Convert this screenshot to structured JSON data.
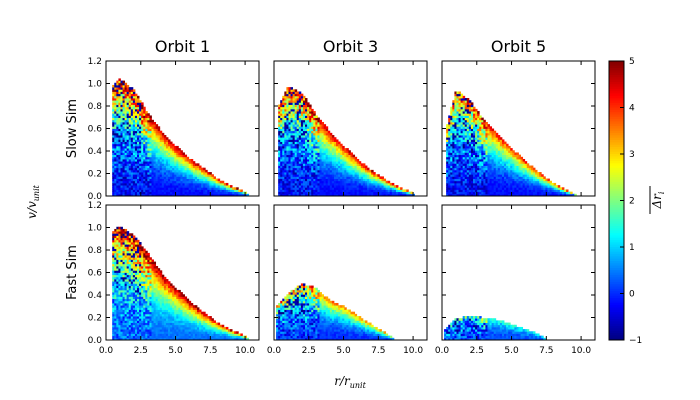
{
  "chart_data": {
    "type": "heatmap",
    "columns": [
      "Orbit 1",
      "Orbit 3",
      "Orbit 5"
    ],
    "rows": [
      "Slow Sim",
      "Fast Sim"
    ],
    "xlabel": "r/r_unit",
    "ylabel": "v/v_unit",
    "colorbar_label": "Δr_i",
    "xlim": [
      0.0,
      11.0
    ],
    "ylim": [
      0.0,
      1.2
    ],
    "xticks": [
      "0.0",
      "2.5",
      "5.0",
      "7.5",
      "10.0"
    ],
    "yticks": [
      "0.0",
      "0.2",
      "0.4",
      "0.6",
      "0.8",
      "1.0",
      "1.2"
    ],
    "colorbar": {
      "min": -1,
      "max": 5,
      "ticks": [
        "−1",
        "0",
        "1",
        "2",
        "3",
        "4",
        "5"
      ],
      "colormap": "jet"
    },
    "panels": [
      {
        "row": "Slow Sim",
        "column": "Orbit 1",
        "envelope_x": [
          0.4,
          1.0,
          2.0,
          3.0,
          4.0,
          5.0,
          6.0,
          7.0,
          8.0,
          9.0,
          10.0,
          10.4
        ],
        "envelope_vmax": [
          0.98,
          1.04,
          0.95,
          0.74,
          0.58,
          0.45,
          0.34,
          0.25,
          0.16,
          0.09,
          0.04,
          0.0
        ],
        "outer_value": 4.8,
        "inner_value": -0.2
      },
      {
        "row": "Slow Sim",
        "column": "Orbit 3",
        "envelope_x": [
          0.3,
          1.0,
          2.0,
          3.0,
          4.0,
          5.0,
          6.0,
          7.0,
          8.0,
          9.0,
          10.0,
          10.2
        ],
        "envelope_vmax": [
          0.8,
          0.98,
          0.92,
          0.73,
          0.58,
          0.45,
          0.33,
          0.23,
          0.15,
          0.08,
          0.03,
          0.0
        ],
        "outer_value": 4.6,
        "inner_value": -0.2
      },
      {
        "row": "Slow Sim",
        "column": "Orbit 5",
        "envelope_x": [
          0.3,
          1.0,
          2.0,
          3.0,
          4.0,
          5.0,
          6.0,
          7.0,
          8.0,
          9.0,
          9.8
        ],
        "envelope_vmax": [
          0.6,
          0.95,
          0.85,
          0.68,
          0.55,
          0.43,
          0.31,
          0.21,
          0.12,
          0.05,
          0.0
        ],
        "outer_value": 4.2,
        "inner_value": -0.2
      },
      {
        "row": "Fast Sim",
        "column": "Orbit 1",
        "envelope_x": [
          0.4,
          1.0,
          2.0,
          3.0,
          4.0,
          5.0,
          6.0,
          7.0,
          8.0,
          9.0,
          10.0,
          10.3
        ],
        "envelope_vmax": [
          0.95,
          1.02,
          0.93,
          0.78,
          0.6,
          0.47,
          0.35,
          0.25,
          0.16,
          0.09,
          0.04,
          0.0
        ],
        "outer_value": 5.0,
        "inner_value": 0.4
      },
      {
        "row": "Fast Sim",
        "column": "Orbit 3",
        "envelope_x": [
          0.2,
          1.0,
          2.0,
          2.8,
          4.0,
          5.0,
          6.0,
          7.0,
          8.0,
          8.8
        ],
        "envelope_vmax": [
          0.3,
          0.42,
          0.5,
          0.48,
          0.36,
          0.3,
          0.22,
          0.14,
          0.07,
          0.0
        ],
        "outer_value": 3.6,
        "inner_value": 0.0
      },
      {
        "row": "Fast Sim",
        "column": "Orbit 5",
        "envelope_x": [
          0.1,
          1.0,
          2.0,
          3.0,
          4.0,
          5.0,
          6.0,
          7.0,
          7.5
        ],
        "envelope_vmax": [
          0.08,
          0.19,
          0.22,
          0.2,
          0.18,
          0.14,
          0.1,
          0.05,
          0.0
        ],
        "outer_value": 1.5,
        "inner_value": 0.2
      }
    ]
  }
}
